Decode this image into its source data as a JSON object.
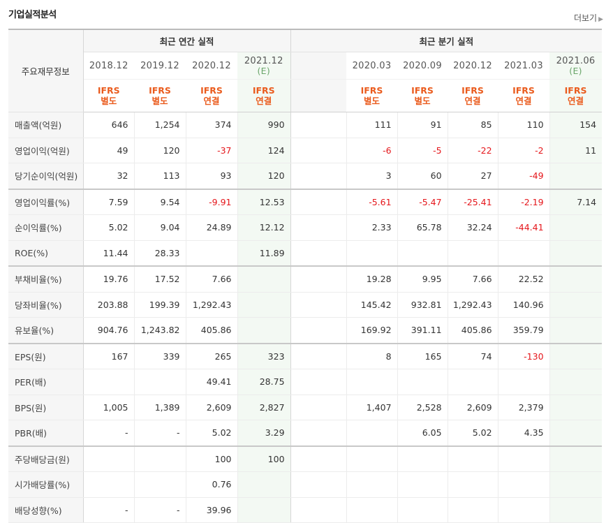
{
  "header": {
    "title": "기업실적분석",
    "more": "더보기"
  },
  "table": {
    "corner": "주요재무정보",
    "annual_label": "최근 연간 실적",
    "quarter_label": "최근 분기 실적",
    "annual_cols": [
      {
        "date": "2018.12",
        "est": "",
        "ifrs1": "IFRS",
        "ifrs2": "별도"
      },
      {
        "date": "2019.12",
        "est": "",
        "ifrs1": "IFRS",
        "ifrs2": "별도"
      },
      {
        "date": "2020.12",
        "est": "",
        "ifrs1": "IFRS",
        "ifrs2": "연결"
      },
      {
        "date": "2021.12",
        "est": "(E)",
        "ifrs1": "IFRS",
        "ifrs2": "연결"
      }
    ],
    "quarter_cols": [
      {
        "date": "2020.03",
        "est": "",
        "ifrs1": "IFRS",
        "ifrs2": "별도"
      },
      {
        "date": "2020.09",
        "est": "",
        "ifrs1": "IFRS",
        "ifrs2": "별도"
      },
      {
        "date": "2020.12",
        "est": "",
        "ifrs1": "IFRS",
        "ifrs2": "연결"
      },
      {
        "date": "2021.03",
        "est": "",
        "ifrs1": "IFRS",
        "ifrs2": "연결"
      },
      {
        "date": "2021.06",
        "est": "(E)",
        "ifrs1": "IFRS",
        "ifrs2": "연결"
      }
    ],
    "rows": [
      {
        "label": "매출액(억원)",
        "annual": [
          "646",
          "1,254",
          "374",
          "990"
        ],
        "quarter": [
          "111",
          "91",
          "85",
          "110",
          "154"
        ]
      },
      {
        "label": "영업이익(억원)",
        "annual": [
          "49",
          "120",
          "-37",
          "124"
        ],
        "quarter": [
          "-6",
          "-5",
          "-22",
          "-2",
          "11"
        ]
      },
      {
        "label": "당기순이익(억원)",
        "annual": [
          "32",
          "113",
          "93",
          "120"
        ],
        "quarter": [
          "3",
          "60",
          "27",
          "-49",
          ""
        ]
      },
      {
        "label": "영업이익률(%)",
        "annual": [
          "7.59",
          "9.54",
          "-9.91",
          "12.53"
        ],
        "quarter": [
          "-5.61",
          "-5.47",
          "-25.41",
          "-2.19",
          "7.14"
        ]
      },
      {
        "label": "순이익률(%)",
        "annual": [
          "5.02",
          "9.04",
          "24.89",
          "12.12"
        ],
        "quarter": [
          "2.33",
          "65.78",
          "32.24",
          "-44.41",
          ""
        ]
      },
      {
        "label": "ROE(%)",
        "annual": [
          "11.44",
          "28.33",
          "",
          "11.89"
        ],
        "quarter": [
          "",
          "",
          "",
          "",
          ""
        ]
      },
      {
        "label": "부채비율(%)",
        "annual": [
          "19.76",
          "17.52",
          "7.66",
          ""
        ],
        "quarter": [
          "19.28",
          "9.95",
          "7.66",
          "22.52",
          ""
        ]
      },
      {
        "label": "당좌비율(%)",
        "annual": [
          "203.88",
          "199.39",
          "1,292.43",
          ""
        ],
        "quarter": [
          "145.42",
          "932.81",
          "1,292.43",
          "140.96",
          ""
        ]
      },
      {
        "label": "유보율(%)",
        "annual": [
          "904.76",
          "1,243.82",
          "405.86",
          ""
        ],
        "quarter": [
          "169.92",
          "391.11",
          "405.86",
          "359.79",
          ""
        ]
      },
      {
        "label": "EPS(원)",
        "annual": [
          "167",
          "339",
          "265",
          "323"
        ],
        "quarter": [
          "8",
          "165",
          "74",
          "-130",
          ""
        ]
      },
      {
        "label": "PER(배)",
        "annual": [
          "",
          "",
          "49.41",
          "28.75"
        ],
        "quarter": [
          "",
          "",
          "",
          "",
          ""
        ]
      },
      {
        "label": "BPS(원)",
        "annual": [
          "1,005",
          "1,389",
          "2,609",
          "2,827"
        ],
        "quarter": [
          "1,407",
          "2,528",
          "2,609",
          "2,379",
          ""
        ]
      },
      {
        "label": "PBR(배)",
        "annual": [
          "-",
          "-",
          "5.02",
          "3.29"
        ],
        "quarter": [
          "",
          "6.05",
          "5.02",
          "4.35",
          ""
        ]
      },
      {
        "label": "주당배당금(원)",
        "annual": [
          "",
          "",
          "100",
          "100"
        ],
        "quarter": [
          "",
          "",
          "",
          "",
          ""
        ]
      },
      {
        "label": "시가배당률(%)",
        "annual": [
          "",
          "",
          "0.76",
          ""
        ],
        "quarter": [
          "",
          "",
          "",
          "",
          ""
        ]
      },
      {
        "label": "배당성향(%)",
        "annual": [
          "-",
          "-",
          "39.96",
          ""
        ],
        "quarter": [
          "",
          "",
          "",
          "",
          ""
        ]
      }
    ],
    "group_ends": [
      2,
      5,
      8,
      12
    ]
  }
}
